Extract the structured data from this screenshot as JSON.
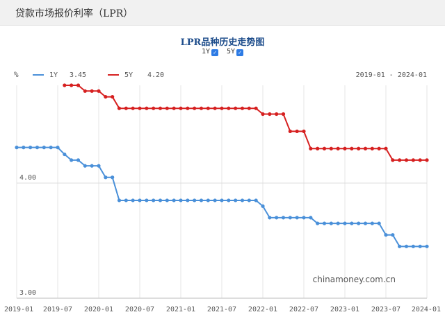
{
  "page": {
    "title": "贷款市场报价利率（LPR）"
  },
  "chart_title": "LPR品种历史走势图",
  "toggles": [
    {
      "label": "1Y",
      "checked": true
    },
    {
      "label": "5Y",
      "checked": true
    }
  ],
  "legend": {
    "y_unit": "%",
    "range_text": "2019-01 - 2024-01",
    "series": [
      {
        "label": "1Y",
        "value": "3.45",
        "color": "#4a90d9"
      },
      {
        "label": "5Y",
        "value": "4.20",
        "color": "#d62020"
      }
    ]
  },
  "watermark": "chinamoney.com.cn",
  "chart_data": {
    "type": "line",
    "xlabel": "",
    "ylabel": "%",
    "x_ticks": [
      "2019-01",
      "2019-07",
      "2020-01",
      "2020-07",
      "2021-01",
      "2021-07",
      "2022-01",
      "2022-07",
      "2023-01",
      "2023-07",
      "2024-01"
    ],
    "y_ticks": [
      "4.00",
      "3.00"
    ],
    "ylim": [
      3.0,
      4.85
    ],
    "grid": true,
    "series": [
      {
        "name": "1Y",
        "color": "#4a90d9",
        "start": "2019-01",
        "end": "2024-01",
        "step_months": 1,
        "values": [
          4.31,
          4.31,
          4.31,
          4.31,
          4.31,
          4.31,
          4.31,
          4.25,
          4.2,
          4.2,
          4.15,
          4.15,
          4.15,
          4.05,
          4.05,
          3.85,
          3.85,
          3.85,
          3.85,
          3.85,
          3.85,
          3.85,
          3.85,
          3.85,
          3.85,
          3.85,
          3.85,
          3.85,
          3.85,
          3.85,
          3.85,
          3.85,
          3.85,
          3.85,
          3.85,
          3.85,
          3.8,
          3.7,
          3.7,
          3.7,
          3.7,
          3.7,
          3.7,
          3.7,
          3.65,
          3.65,
          3.65,
          3.65,
          3.65,
          3.65,
          3.65,
          3.65,
          3.65,
          3.65,
          3.55,
          3.55,
          3.45,
          3.45,
          3.45,
          3.45,
          3.45
        ]
      },
      {
        "name": "5Y",
        "color": "#d62020",
        "start": "2019-08",
        "end": "2024-01",
        "step_months": 1,
        "values": [
          4.85,
          4.85,
          4.85,
          4.8,
          4.8,
          4.8,
          4.75,
          4.75,
          4.65,
          4.65,
          4.65,
          4.65,
          4.65,
          4.65,
          4.65,
          4.65,
          4.65,
          4.65,
          4.65,
          4.65,
          4.65,
          4.65,
          4.65,
          4.65,
          4.65,
          4.65,
          4.65,
          4.65,
          4.65,
          4.6,
          4.6,
          4.6,
          4.6,
          4.45,
          4.45,
          4.45,
          4.3,
          4.3,
          4.3,
          4.3,
          4.3,
          4.3,
          4.3,
          4.3,
          4.3,
          4.3,
          4.3,
          4.3,
          4.2,
          4.2,
          4.2,
          4.2,
          4.2,
          4.2
        ]
      }
    ]
  }
}
